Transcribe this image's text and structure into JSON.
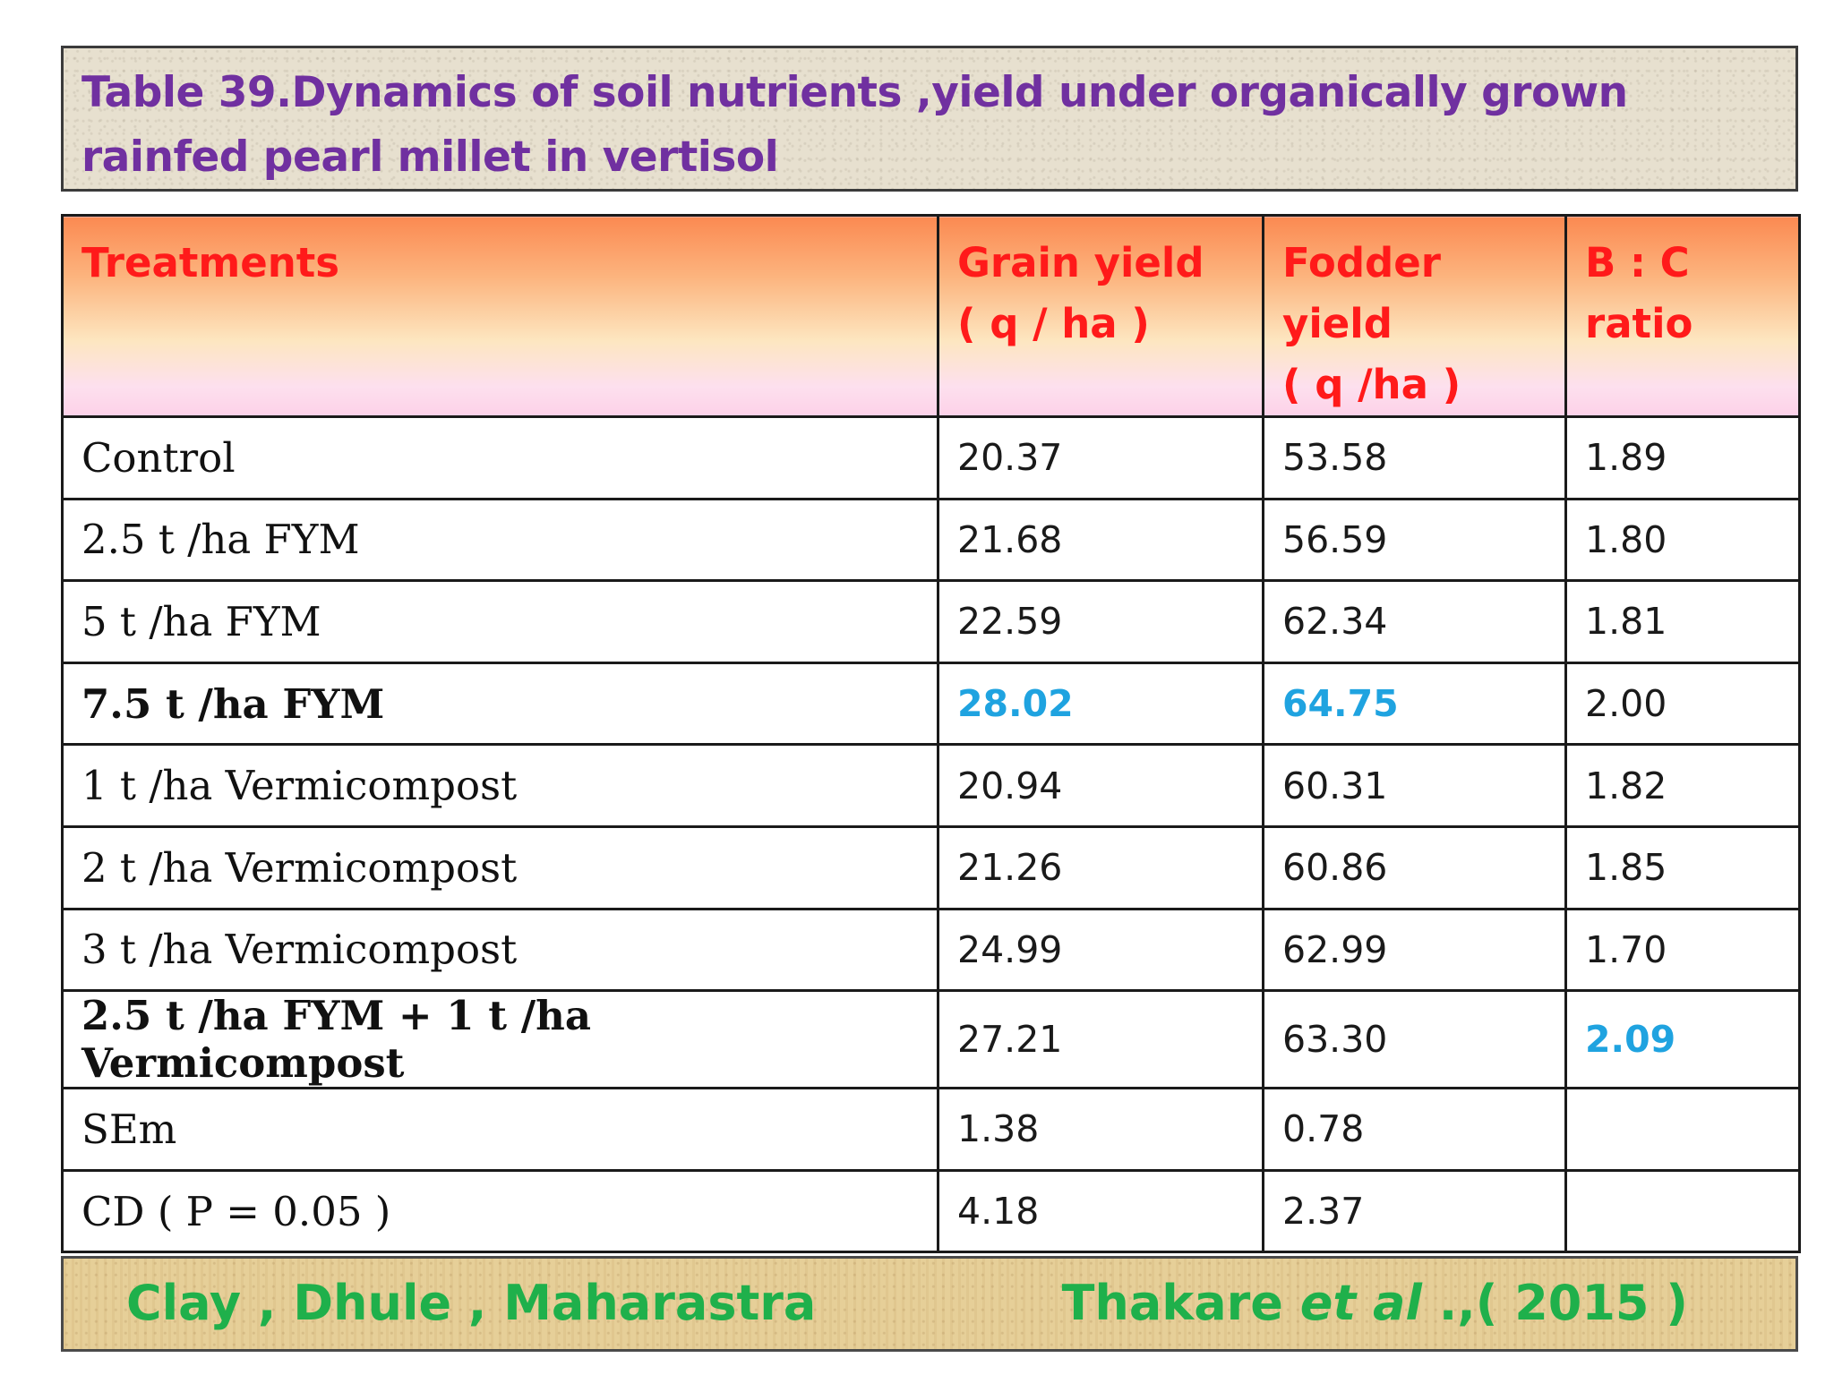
{
  "title": "Table 39.Dynamics of soil nutrients ,yield under organically  grown rainfed pearl millet in vertisol",
  "table": {
    "headers": {
      "treatments": "Treatments",
      "grain_line1": "Grain yield",
      "grain_line2": "( q / ha )",
      "fodder_line1": "Fodder yield",
      "fodder_line2": "( q /ha )",
      "bc_line1": "B : C",
      "bc_line2": "ratio"
    },
    "rows": [
      {
        "treatment": "Control",
        "grain": "20.37",
        "fodder": "53.58",
        "bc": "1.89"
      },
      {
        "treatment": "2.5 t /ha FYM",
        "grain": "21.68",
        "fodder": "56.59",
        "bc": "1.80"
      },
      {
        "treatment": "5 t /ha FYM",
        "grain": "22.59",
        "fodder": "62.34",
        "bc": "1.81"
      },
      {
        "treatment": "7.5 t /ha FYM",
        "grain": "28.02",
        "fodder": "64.75",
        "bc": "2.00"
      },
      {
        "treatment": "1 t /ha Vermicompost",
        "grain": "20.94",
        "fodder": "60.31",
        "bc": "1.82"
      },
      {
        "treatment": "2 t /ha Vermicompost",
        "grain": "21.26",
        "fodder": "60.86",
        "bc": "1.85"
      },
      {
        "treatment": "3 t /ha Vermicompost",
        "grain": "24.99",
        "fodder": "62.99",
        "bc": "1.70"
      },
      {
        "treatment": "2.5 t /ha FYM + 1 t /ha Vermicompost",
        "grain": "27.21",
        "fodder": "63.30",
        "bc": "2.09"
      },
      {
        "treatment": "SEm",
        "grain": "1.38",
        "fodder": "0.78",
        "bc": ""
      },
      {
        "treatment": "CD ( P = 0.05 )",
        "grain": "4.18",
        "fodder": "2.37",
        "bc": ""
      }
    ]
  },
  "footer": {
    "location": "Clay  ,  Dhule ,  Maharastra",
    "citation_author": "Thakare ",
    "citation_etal": "et al",
    "citation_rest": " .,( 2015 )"
  },
  "colors": {
    "title": "#7030a0",
    "header_text": "#ff1a1a",
    "highlight": "#1fa3e0",
    "footer_text": "#1fb04b"
  }
}
